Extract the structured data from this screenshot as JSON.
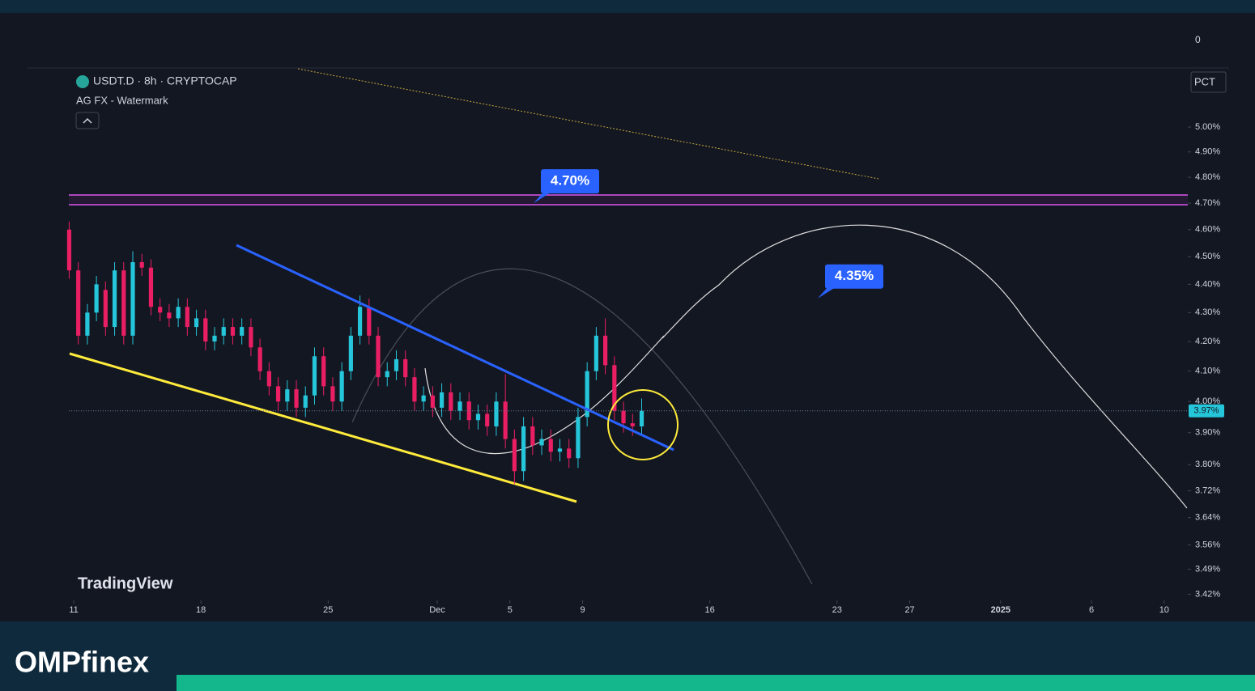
{
  "chart_data": {
    "type": "candlestick",
    "title": "USDT.D · 8h · CRYPTOCAP",
    "subtitle": "AG FX - Watermark",
    "scale_mode": "PCT",
    "y_axis_top_label": "0",
    "watermark": "TradingView",
    "log_scale": true,
    "up_color": "#26c6da",
    "down_color": "#e91e63",
    "xlim": [
      -0.27,
      61.3
    ],
    "ylim": [
      3.403,
      5.246
    ],
    "xticks": [
      {
        "value": 0,
        "label": "11"
      },
      {
        "value": 7,
        "label": "18"
      },
      {
        "value": 14,
        "label": "25"
      },
      {
        "value": 20,
        "label": "Dec"
      },
      {
        "value": 24,
        "label": "5"
      },
      {
        "value": 28,
        "label": "9"
      },
      {
        "value": 35,
        "label": "16"
      },
      {
        "value": 42,
        "label": "23"
      },
      {
        "value": 46,
        "label": "27"
      },
      {
        "value": 51,
        "label": "2025"
      },
      {
        "value": 56,
        "label": "6"
      },
      {
        "value": 60,
        "label": "10"
      }
    ],
    "yticks": [
      {
        "value": 5.0,
        "label": "5.00%"
      },
      {
        "value": 4.9,
        "label": "4.90%"
      },
      {
        "value": 4.8,
        "label": "4.80%"
      },
      {
        "value": 4.7,
        "label": "4.70%"
      },
      {
        "value": 4.6,
        "label": "4.60%"
      },
      {
        "value": 4.5,
        "label": "4.50%"
      },
      {
        "value": 4.4,
        "label": "4.40%"
      },
      {
        "value": 4.3,
        "label": "4.30%"
      },
      {
        "value": 4.2,
        "label": "4.20%"
      },
      {
        "value": 4.1,
        "label": "4.10%"
      },
      {
        "value": 4.0,
        "label": "4.00%"
      },
      {
        "value": 3.9,
        "label": "3.90%"
      },
      {
        "value": 3.8,
        "label": "3.80%"
      },
      {
        "value": 3.72,
        "label": "3.72%"
      },
      {
        "value": 3.64,
        "label": "3.64%"
      },
      {
        "value": 3.56,
        "label": "3.56%"
      },
      {
        "value": 3.49,
        "label": "3.49%"
      },
      {
        "value": 3.42,
        "label": "3.42%"
      }
    ],
    "last_price": {
      "value": 3.97,
      "label": "3.97%"
    },
    "annotations": [
      {
        "value": 4.7,
        "label": "4.70%"
      },
      {
        "value": 4.35,
        "label": "4.35%"
      }
    ],
    "candles": {
      "x": [
        -0.25,
        0.25,
        0.75,
        1.25,
        1.75,
        2.25,
        2.75,
        3.25,
        3.75,
        4.25,
        4.75,
        5.25,
        5.75,
        6.25,
        6.75,
        7.25,
        7.75,
        8.25,
        8.75,
        9.25,
        9.75,
        10.25,
        10.75,
        11.25,
        11.75,
        12.25,
        12.75,
        13.25,
        13.75,
        14.25,
        14.75,
        15.25,
        15.75,
        16.25,
        16.75,
        17.25,
        17.75,
        18.25,
        18.75,
        19.25,
        19.75,
        20.25,
        20.75,
        21.25,
        21.75,
        22.25,
        22.75,
        23.25,
        23.75,
        24.25,
        24.75,
        25.25,
        25.75,
        26.25,
        26.75,
        27.25,
        27.75,
        28.25,
        28.75,
        29.25,
        29.75,
        30.25,
        30.75,
        31.25
      ],
      "open": [
        4.6,
        4.45,
        4.22,
        4.3,
        4.38,
        4.25,
        4.45,
        4.22,
        4.48,
        4.46,
        4.32,
        4.3,
        4.28,
        4.32,
        4.25,
        4.28,
        4.2,
        4.22,
        4.25,
        4.22,
        4.25,
        4.18,
        4.1,
        4.05,
        4.0,
        4.04,
        3.98,
        4.02,
        4.15,
        4.05,
        4.0,
        4.1,
        4.22,
        4.32,
        4.22,
        4.08,
        4.1,
        4.14,
        4.08,
        4.0,
        4.02,
        3.98,
        4.03,
        3.97,
        4.0,
        3.94,
        3.96,
        3.92,
        4.0,
        3.88,
        3.78,
        3.92,
        3.86,
        3.88,
        3.84,
        3.85,
        3.82,
        3.95,
        4.1,
        4.22,
        4.12,
        3.97,
        3.93,
        3.92
      ],
      "high": [
        4.63,
        4.48,
        4.33,
        4.43,
        4.41,
        4.48,
        4.48,
        4.52,
        4.51,
        4.49,
        4.35,
        4.33,
        4.35,
        4.35,
        4.31,
        4.31,
        4.25,
        4.28,
        4.28,
        4.28,
        4.28,
        4.21,
        4.13,
        4.08,
        4.07,
        4.07,
        4.05,
        4.18,
        4.18,
        4.08,
        4.13,
        4.25,
        4.36,
        4.35,
        4.25,
        4.13,
        4.17,
        4.17,
        4.11,
        4.05,
        4.05,
        4.06,
        4.06,
        4.03,
        4.03,
        3.99,
        3.99,
        4.03,
        4.09,
        3.91,
        3.95,
        3.95,
        3.91,
        3.91,
        3.88,
        3.88,
        3.98,
        4.13,
        4.25,
        4.28,
        4.15,
        4.0,
        3.96,
        4.01
      ],
      "low": [
        4.42,
        4.19,
        4.19,
        4.27,
        4.22,
        4.22,
        4.19,
        4.19,
        4.43,
        4.29,
        4.27,
        4.25,
        4.25,
        4.22,
        4.22,
        4.17,
        4.17,
        4.19,
        4.19,
        4.19,
        4.15,
        4.07,
        4.02,
        3.97,
        3.97,
        3.95,
        3.95,
        3.99,
        4.02,
        3.97,
        3.97,
        4.07,
        4.19,
        4.19,
        4.05,
        4.05,
        4.07,
        4.05,
        3.97,
        3.97,
        3.95,
        3.95,
        3.94,
        3.94,
        3.91,
        3.91,
        3.89,
        3.89,
        3.85,
        3.74,
        3.75,
        3.83,
        3.83,
        3.81,
        3.81,
        3.79,
        3.79,
        3.92,
        4.07,
        4.09,
        3.94,
        3.9,
        3.89,
        3.89
      ],
      "close": [
        4.45,
        4.22,
        4.3,
        4.4,
        4.25,
        4.45,
        4.22,
        4.48,
        4.46,
        4.32,
        4.3,
        4.28,
        4.32,
        4.25,
        4.28,
        4.2,
        4.22,
        4.25,
        4.22,
        4.25,
        4.18,
        4.1,
        4.05,
        4.0,
        4.04,
        3.98,
        4.02,
        4.15,
        4.05,
        4.0,
        4.1,
        4.22,
        4.32,
        4.22,
        4.08,
        4.1,
        4.14,
        4.08,
        4.0,
        4.02,
        3.98,
        4.03,
        3.97,
        4.0,
        3.94,
        3.96,
        3.92,
        4.0,
        3.88,
        3.78,
        3.92,
        3.86,
        3.88,
        3.84,
        3.85,
        3.82,
        3.95,
        4.1,
        4.22,
        4.12,
        3.97,
        3.93,
        3.92,
        3.97
      ]
    }
  },
  "footer": {
    "brand": "OMPfinex"
  }
}
